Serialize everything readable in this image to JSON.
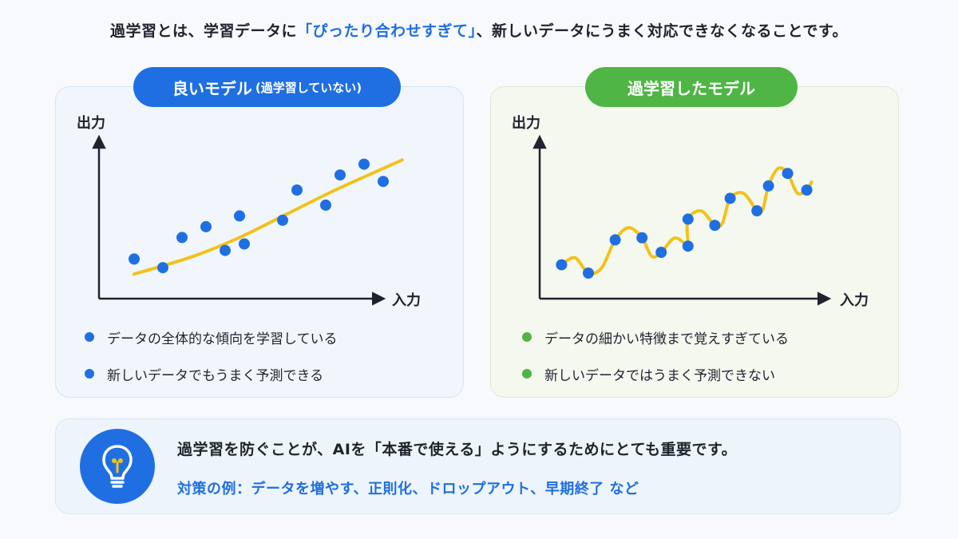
{
  "intro": {
    "before": "過学習とは、学習データに",
    "highlight": "「ぴったり合わせすぎて」",
    "after": "、新しいデータにうまく対応できなくなることです。"
  },
  "good_model": {
    "title": "良いモデル",
    "title_sub": "(過学習していない)",
    "y_label": "出力",
    "x_label": "入力",
    "bullets": [
      "データの全体的な傾向を学習している",
      "新しいデータでもうまく予測できる"
    ]
  },
  "overfit_model": {
    "title": "過学習したモデル",
    "y_label": "出力",
    "x_label": "入力",
    "bullets": [
      "データの細かい特徴まで覚えすぎている",
      "新しいデータではうまく予測できない"
    ]
  },
  "footer": {
    "main": "過学習を防ぐことが、AIを「本番で使える」ようにするためにとても重要です。",
    "sub": "対策の例：データを増やす、正則化、ドロップアウト、早期終了 など"
  },
  "icons": {
    "footer": "lightbulb-icon"
  },
  "colors": {
    "blue": "#1f6fe3",
    "green": "#4fb544",
    "curve": "#f2c21b",
    "axis": "#1f2330"
  },
  "chart_data": [
    {
      "type": "scatter",
      "title": "良いモデル (過学習していない)",
      "xlabel": "入力",
      "ylabel": "出力",
      "points": [
        [
          0.8,
          2.8
        ],
        [
          1.4,
          2.4
        ],
        [
          1.8,
          3.8
        ],
        [
          2.3,
          4.3
        ],
        [
          2.7,
          3.2
        ],
        [
          3.0,
          4.8
        ],
        [
          3.1,
          3.5
        ],
        [
          3.9,
          4.6
        ],
        [
          4.2,
          6.0
        ],
        [
          4.8,
          5.3
        ],
        [
          5.1,
          6.7
        ],
        [
          5.6,
          7.2
        ],
        [
          6.0,
          6.4
        ]
      ],
      "fit": "smooth",
      "fit_points": [
        [
          0.8,
          2.1
        ],
        [
          2.0,
          2.9
        ],
        [
          3.0,
          3.8
        ],
        [
          4.0,
          4.9
        ],
        [
          5.0,
          6.0
        ],
        [
          6.4,
          7.4
        ]
      ]
    },
    {
      "type": "scatter",
      "title": "過学習したモデル",
      "xlabel": "入力",
      "ylabel": "出力",
      "points": [
        [
          0.8,
          2.4
        ],
        [
          1.5,
          2.0
        ],
        [
          2.2,
          3.6
        ],
        [
          2.9,
          3.7
        ],
        [
          3.4,
          3.0
        ],
        [
          4.1,
          4.6
        ],
        [
          4.1,
          3.3
        ],
        [
          4.8,
          4.3
        ],
        [
          5.2,
          5.6
        ],
        [
          5.9,
          5.0
        ],
        [
          6.2,
          6.2
        ],
        [
          6.7,
          6.8
        ],
        [
          7.2,
          6.0
        ]
      ],
      "fit": "through-every-point"
    }
  ]
}
